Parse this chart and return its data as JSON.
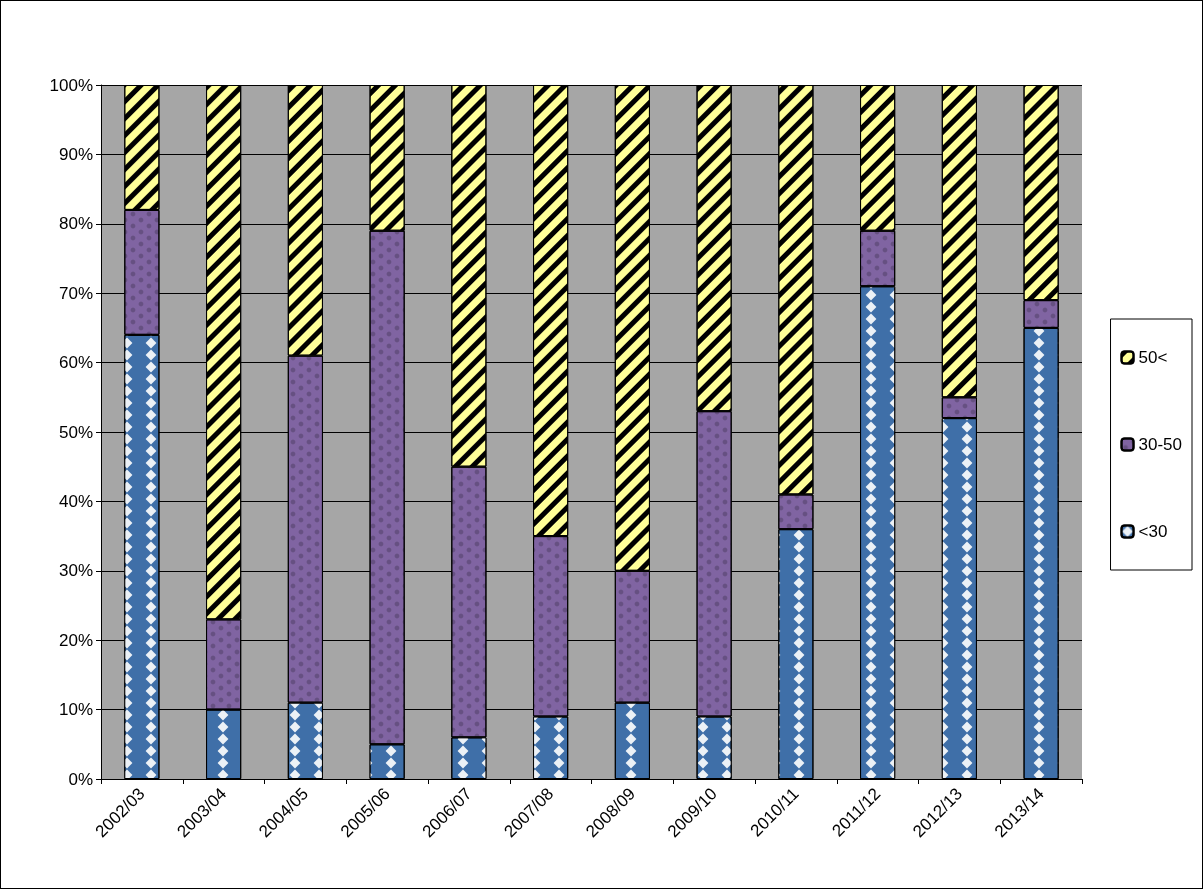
{
  "chart_data": {
    "type": "bar",
    "stacked": true,
    "categories": [
      "2002/03",
      "2003/04",
      "2004/05",
      "2005/06",
      "2006/07",
      "2007/08",
      "2008/09",
      "2009/10",
      "2010/11",
      "2011/12",
      "2012/13",
      "2013/14"
    ],
    "series": [
      {
        "name": "<30",
        "color": "#3f6fa8",
        "values": [
          64,
          10,
          11,
          5,
          6,
          9,
          11,
          9,
          36,
          71,
          52,
          65
        ]
      },
      {
        "name": "30-50",
        "color": "#8064a2",
        "values": [
          18,
          13,
          50,
          74,
          39,
          26,
          19,
          44,
          5,
          8,
          3,
          4
        ]
      },
      {
        "name": "50<",
        "color": "#ffff99",
        "values": [
          18,
          77,
          39,
          21,
          55,
          65,
          70,
          47,
          59,
          21,
          45,
          31
        ]
      }
    ],
    "ylim": [
      0,
      100
    ],
    "yticks": [
      {
        "value": 0,
        "label": "0%"
      },
      {
        "value": 10,
        "label": "10%"
      },
      {
        "value": 20,
        "label": "20%"
      },
      {
        "value": 30,
        "label": "30%"
      },
      {
        "value": 40,
        "label": "40%"
      },
      {
        "value": 50,
        "label": "50%"
      },
      {
        "value": 60,
        "label": "60%"
      },
      {
        "value": 70,
        "label": "70%"
      },
      {
        "value": 80,
        "label": "80%"
      },
      {
        "value": 90,
        "label": "90%"
      },
      {
        "value": 100,
        "label": "100%"
      }
    ],
    "grid": "y",
    "legend": "right"
  }
}
